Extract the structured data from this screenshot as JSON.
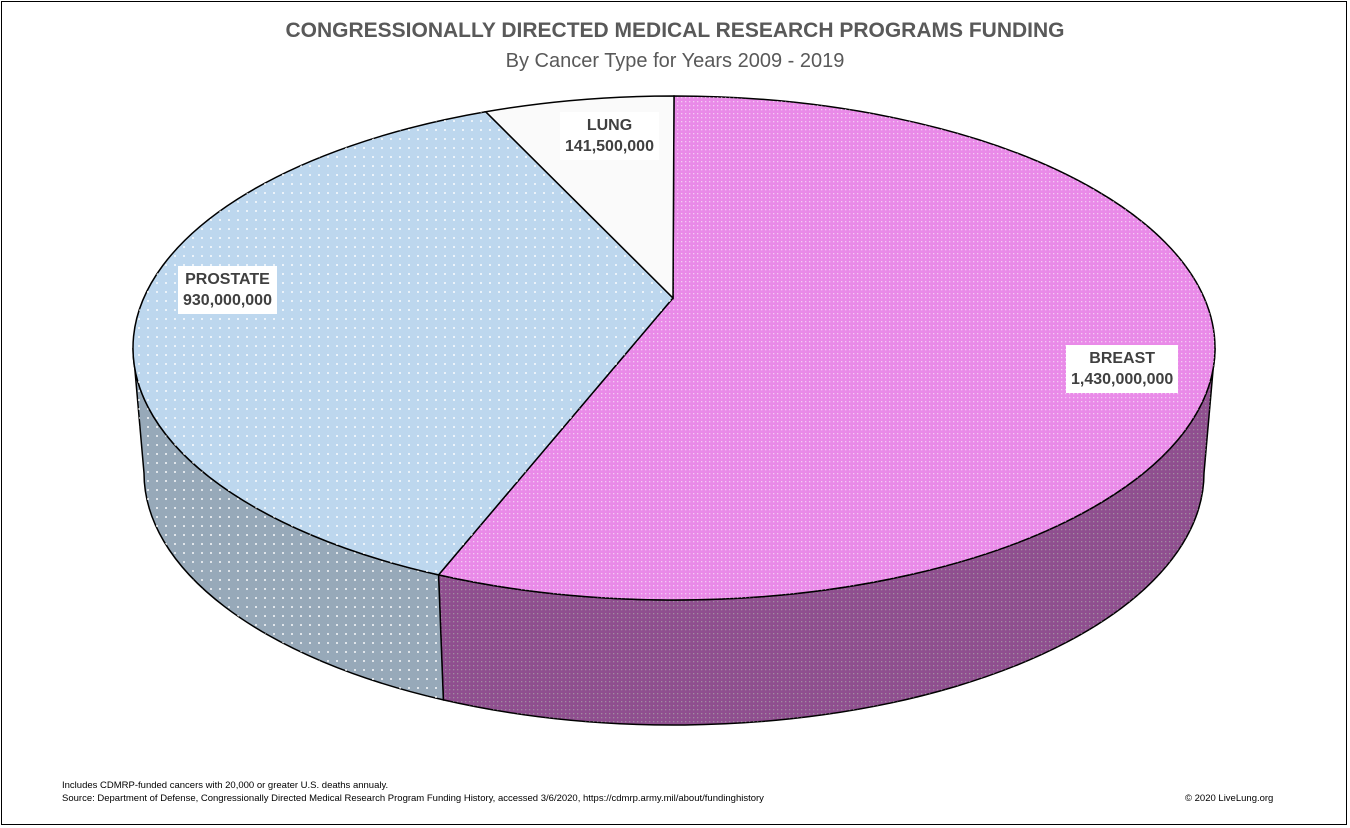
{
  "chart_data": {
    "type": "pie",
    "style": "3d",
    "title": "CONGRESSIONALLY DIRECTED MEDICAL RESEARCH PROGRAMS FUNDING",
    "subtitle": "By Cancer Type for Years 2009 - 2019",
    "slices": [
      {
        "name": "BREAST",
        "value": 1430000000,
        "label": "1,430,000,000",
        "color": "#e98ae8",
        "side_color": "#8f4f8f"
      },
      {
        "name": "PROSTATE",
        "value": 930000000,
        "label": "930,000,000",
        "color": "#bdd7ee",
        "side_color": "#97a9b9"
      },
      {
        "name": "LUNG",
        "value": 141500000,
        "label": "141,500,000",
        "color": "#fafafa",
        "side_color": "#cccccc"
      }
    ]
  },
  "footer": {
    "note": "Includes CDMRP-funded cancers with 20,000 or greater U.S. deaths annualy.",
    "source": "Source: Department of Defense, Congressionally Directed Medical Research Program Funding History, accessed 3/6/2020, https://cdmrp.army.mil/about/fundinghistory",
    "copyright": "© 2020 LiveLung.org"
  }
}
